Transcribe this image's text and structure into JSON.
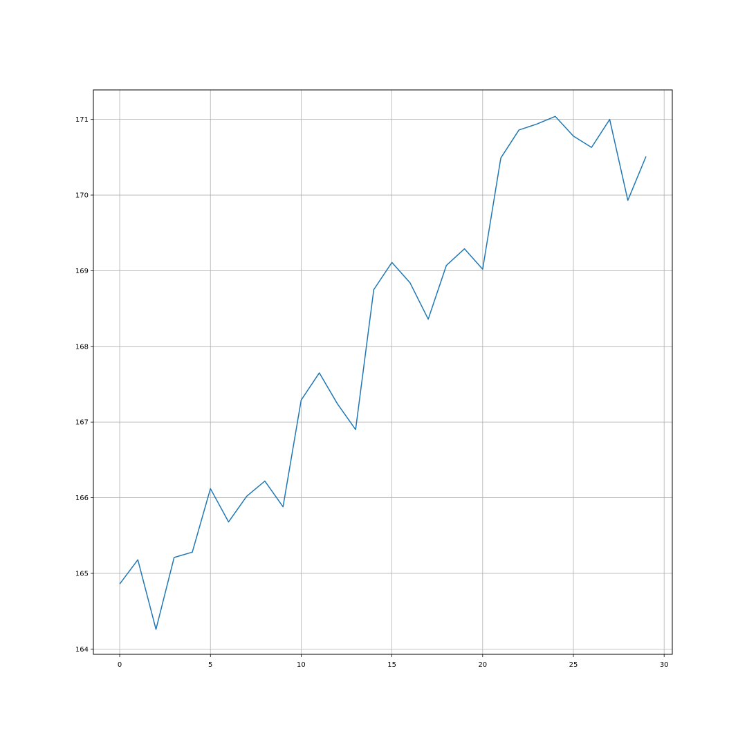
{
  "chart_data": {
    "type": "line",
    "title": "",
    "xlabel": "",
    "ylabel": "",
    "xlim": [
      -1.45,
      30.45
    ],
    "ylim": [
      163.93,
      171.39
    ],
    "grid": true,
    "legend": "none",
    "line_color": "#1f77b4",
    "x_ticks": [
      0,
      5,
      10,
      15,
      20,
      25,
      30
    ],
    "x_tick_labels": [
      "0",
      "5",
      "10",
      "15",
      "20",
      "25",
      "30"
    ],
    "y_ticks": [
      164,
      165,
      166,
      167,
      168,
      169,
      170,
      171
    ],
    "y_tick_labels": [
      "164",
      "165",
      "166",
      "167",
      "168",
      "169",
      "170",
      "171"
    ],
    "series": [
      {
        "x": [
          0,
          1,
          2,
          3,
          4,
          5,
          6,
          7,
          8,
          9,
          10,
          11,
          12,
          13,
          14,
          15,
          16,
          17,
          18,
          19,
          20,
          21,
          22,
          23,
          24,
          25,
          26,
          27,
          28,
          29
        ],
        "values": [
          164.86,
          165.18,
          164.26,
          165.21,
          165.28,
          166.12,
          165.68,
          166.02,
          166.22,
          165.88,
          167.29,
          167.65,
          167.24,
          166.9,
          168.75,
          169.11,
          168.84,
          168.36,
          169.07,
          169.29,
          169.02,
          170.49,
          170.86,
          170.94,
          171.04,
          170.78,
          170.63,
          171.0,
          169.93,
          170.51
        ]
      }
    ]
  }
}
